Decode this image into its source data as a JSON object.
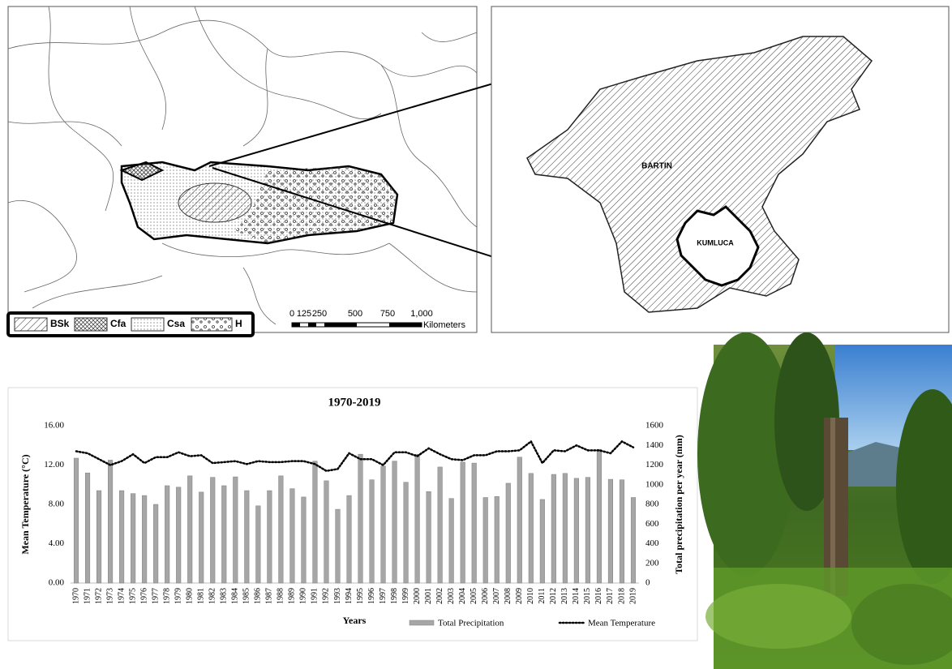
{
  "maps": {
    "legend": [
      "BSk",
      "Cfa",
      "Csa",
      "H"
    ],
    "scale": [
      "0",
      "125",
      "250",
      "500",
      "750",
      "1,000"
    ],
    "scale_unit": "Kilometers",
    "regions": [
      "BARTIN",
      "KUMLUCA"
    ]
  },
  "chart_data": {
    "type": "bar",
    "title": "1970-2019",
    "x_label": "Years",
    "y_label": "Mean Temperature (°C)",
    "y2_label": "Total precipitation per year (mm)",
    "categories": [
      "1970",
      "1971",
      "1972",
      "1973",
      "1974",
      "1975",
      "1976",
      "1977",
      "1978",
      "1979",
      "1980",
      "1981",
      "1982",
      "1983",
      "1984",
      "1985",
      "1986",
      "1987",
      "1988",
      "1989",
      "1990",
      "1991",
      "1992",
      "1993",
      "1994",
      "1995",
      "1996",
      "1997",
      "1998",
      "1999",
      "2000",
      "2001",
      "2002",
      "2003",
      "2004",
      "2005",
      "2006",
      "2007",
      "2008",
      "2009",
      "2010",
      "2011",
      "2012",
      "2013",
      "2014",
      "2015",
      "2016",
      "2017",
      "2018",
      "2019"
    ],
    "series": [
      {
        "name": "Total Precipitation",
        "type": "bar",
        "axis": "y2",
        "color": "#a6a6a6",
        "values": [
          1270,
          1120,
          940,
          1250,
          940,
          910,
          890,
          800,
          990,
          975,
          1090,
          925,
          1075,
          990,
          1080,
          940,
          785,
          940,
          1090,
          960,
          875,
          1240,
          1040,
          750,
          890,
          1310,
          1050,
          1190,
          1240,
          1025,
          1310,
          930,
          1180,
          860,
          1230,
          1220,
          870,
          880,
          1015,
          1280,
          1115,
          850,
          1105,
          1115,
          1065,
          1075,
          1360,
          1055,
          1050,
          870
        ]
      },
      {
        "name": "Mean Temperature",
        "type": "line",
        "color": "#000000",
        "values": [
          13.4,
          13.2,
          12.6,
          12.0,
          12.4,
          13.1,
          12.2,
          12.8,
          12.8,
          13.3,
          12.9,
          13.0,
          12.2,
          12.3,
          12.4,
          12.1,
          12.4,
          12.3,
          12.3,
          12.4,
          12.4,
          12.1,
          11.4,
          11.6,
          13.2,
          12.6,
          12.6,
          12.0,
          13.3,
          13.3,
          12.9,
          13.7,
          13.1,
          12.6,
          12.5,
          13.0,
          13.0,
          13.4,
          13.4,
          13.5,
          14.4,
          12.2,
          13.5,
          13.4,
          14.0,
          13.5,
          13.5,
          13.2,
          14.4,
          13.8
        ]
      }
    ],
    "ylim": [
      0,
      16
    ],
    "yticks": [
      {
        "value": 0,
        "label": "0.00"
      },
      {
        "value": 4,
        "label": "4.00"
      },
      {
        "value": 8,
        "label": "8.00"
      },
      {
        "value": 12,
        "label": "12.00"
      },
      {
        "value": 16,
        "label": "16.00"
      }
    ],
    "y2lim": [
      0,
      1600
    ],
    "y2ticks": [
      0,
      200,
      400,
      600,
      800,
      1000,
      1200,
      1400,
      1600
    ],
    "grid": false
  }
}
